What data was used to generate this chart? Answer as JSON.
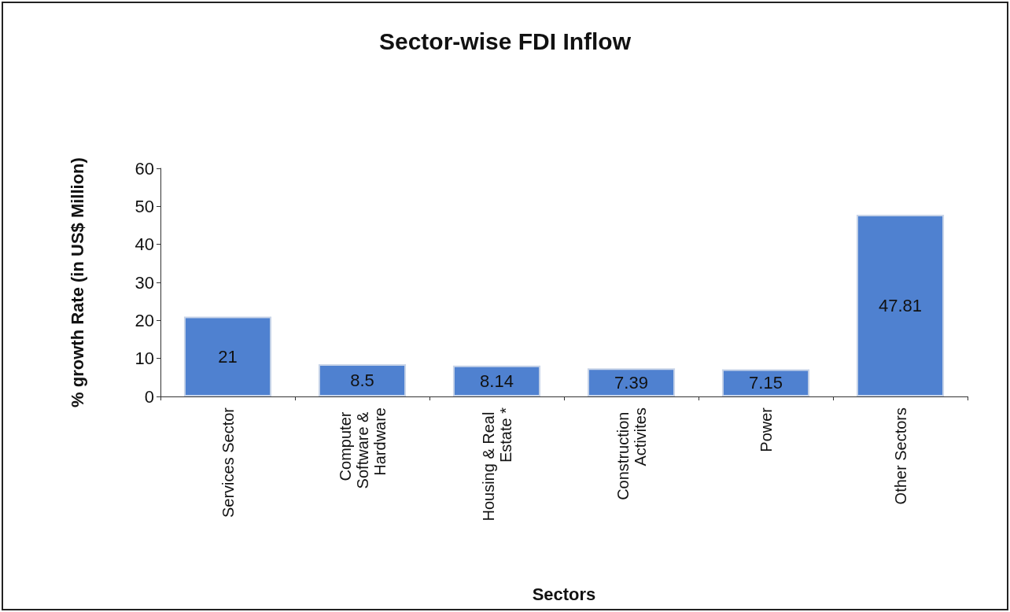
{
  "chart_data": {
    "type": "bar",
    "title": "Sector-wise FDI Inflow",
    "xlabel": "Sectors",
    "ylabel": "% growth Rate (in US$ Million)",
    "categories": [
      "Services Sector",
      "Computer Software & Hardware",
      "Housing & Real Estate *",
      "Construction Activites",
      "Power",
      "Other Sectors"
    ],
    "values": [
      21,
      8.5,
      8.14,
      7.39,
      7.15,
      47.81
    ],
    "color": "#4f81d0",
    "ylim": [
      0,
      60
    ],
    "yticks": [
      0,
      10,
      20,
      30,
      40,
      50,
      60
    ],
    "grid": false,
    "data_labels": true
  }
}
